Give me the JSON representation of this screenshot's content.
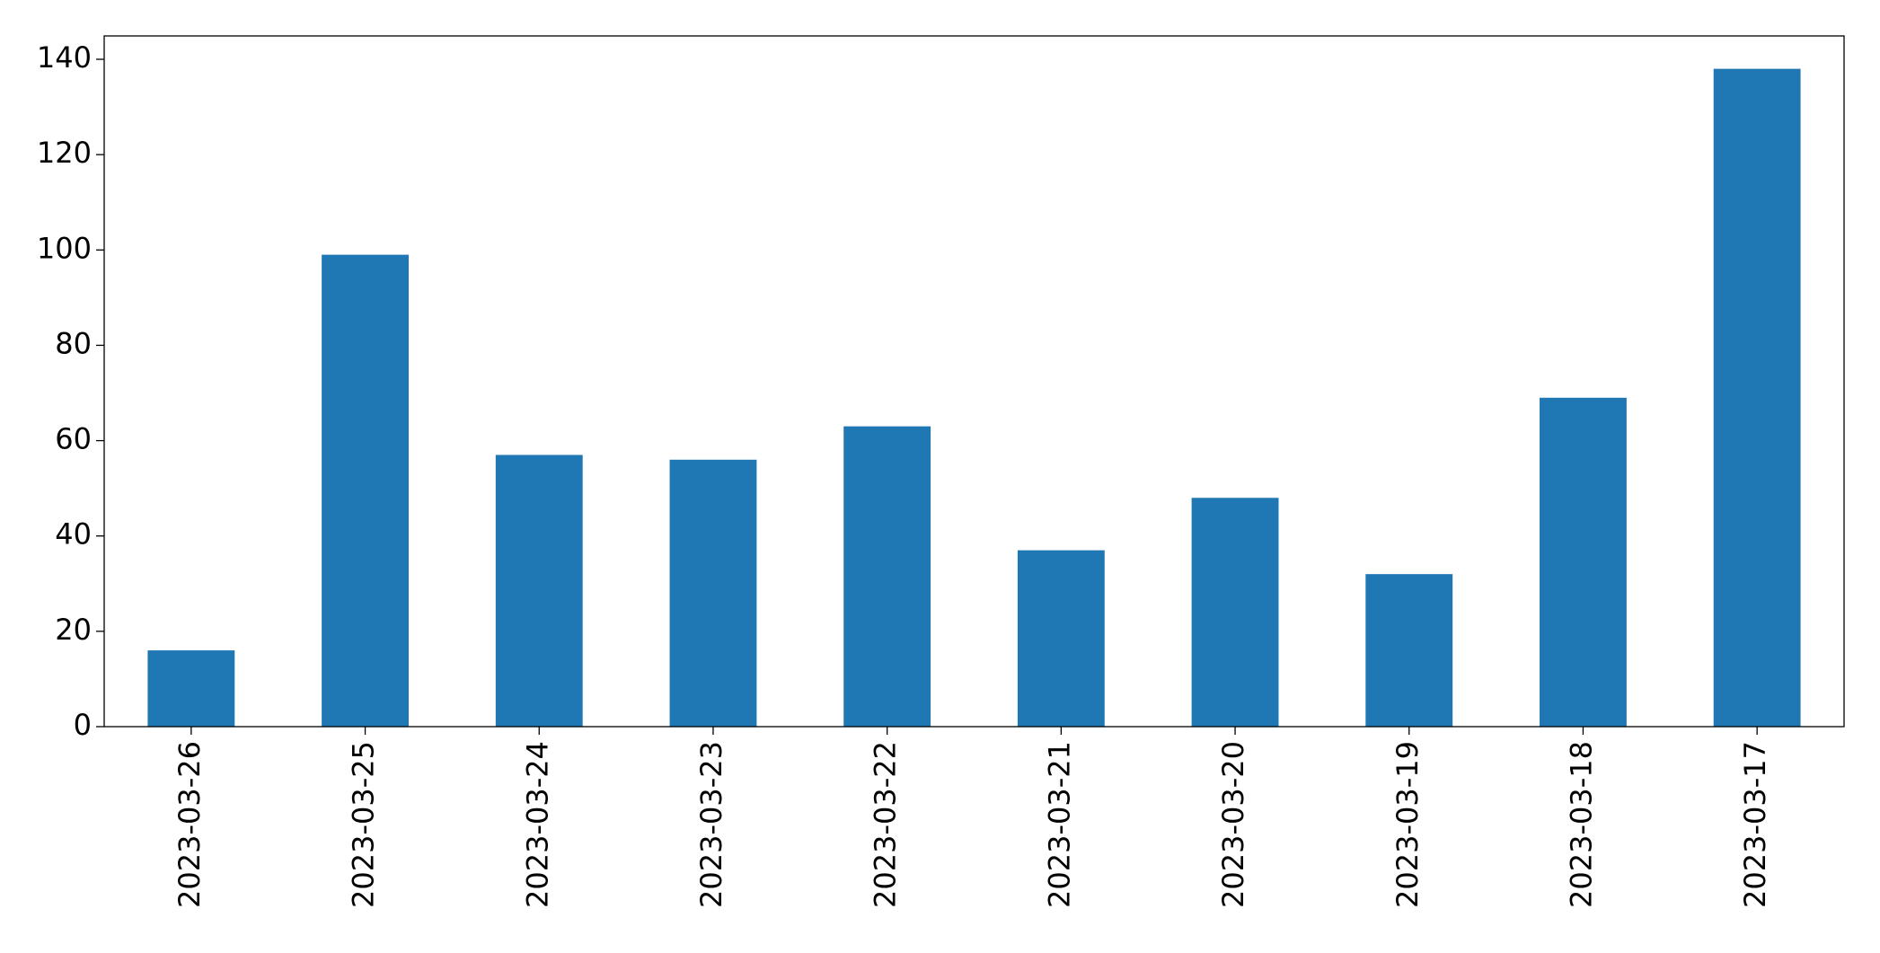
{
  "chart_data": {
    "type": "bar",
    "categories": [
      "2023-03-26",
      "2023-03-25",
      "2023-03-24",
      "2023-03-23",
      "2023-03-22",
      "2023-03-21",
      "2023-03-20",
      "2023-03-19",
      "2023-03-18",
      "2023-03-17"
    ],
    "values": [
      16,
      99,
      57,
      56,
      63,
      37,
      48,
      32,
      69,
      138
    ],
    "color": "#1f77b4",
    "ylim": [
      0,
      144.9
    ],
    "yticks": [
      0,
      20,
      40,
      60,
      80,
      100,
      120,
      140
    ],
    "grid": false
  }
}
